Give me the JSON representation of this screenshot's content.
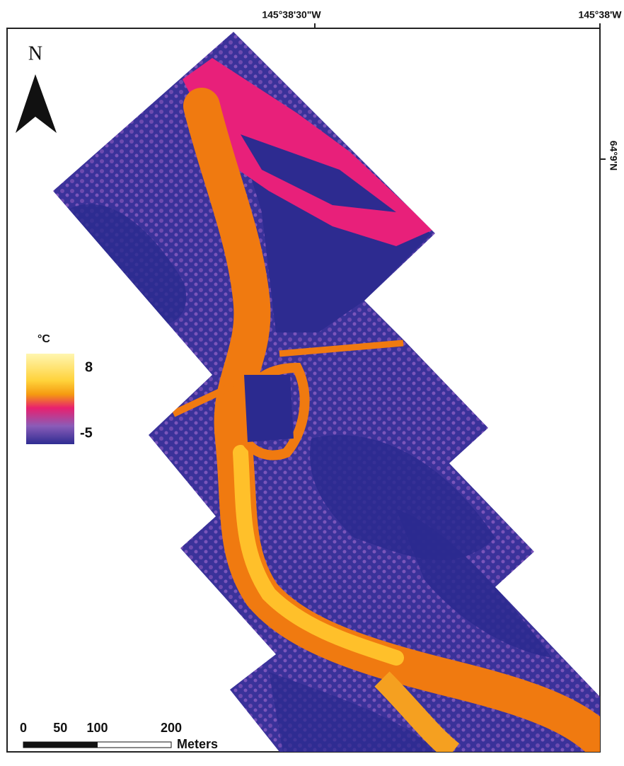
{
  "map": {
    "graticule": {
      "top": [
        "145°38'30\"W",
        "145°38'W"
      ],
      "right": [
        "64°9'N"
      ]
    },
    "north_arrow": "N",
    "legend": {
      "unit": "°C",
      "max": 8,
      "min": -5
    },
    "scale_bar": {
      "ticks": [
        0,
        50,
        100,
        200
      ],
      "unit": "Meters"
    }
  }
}
